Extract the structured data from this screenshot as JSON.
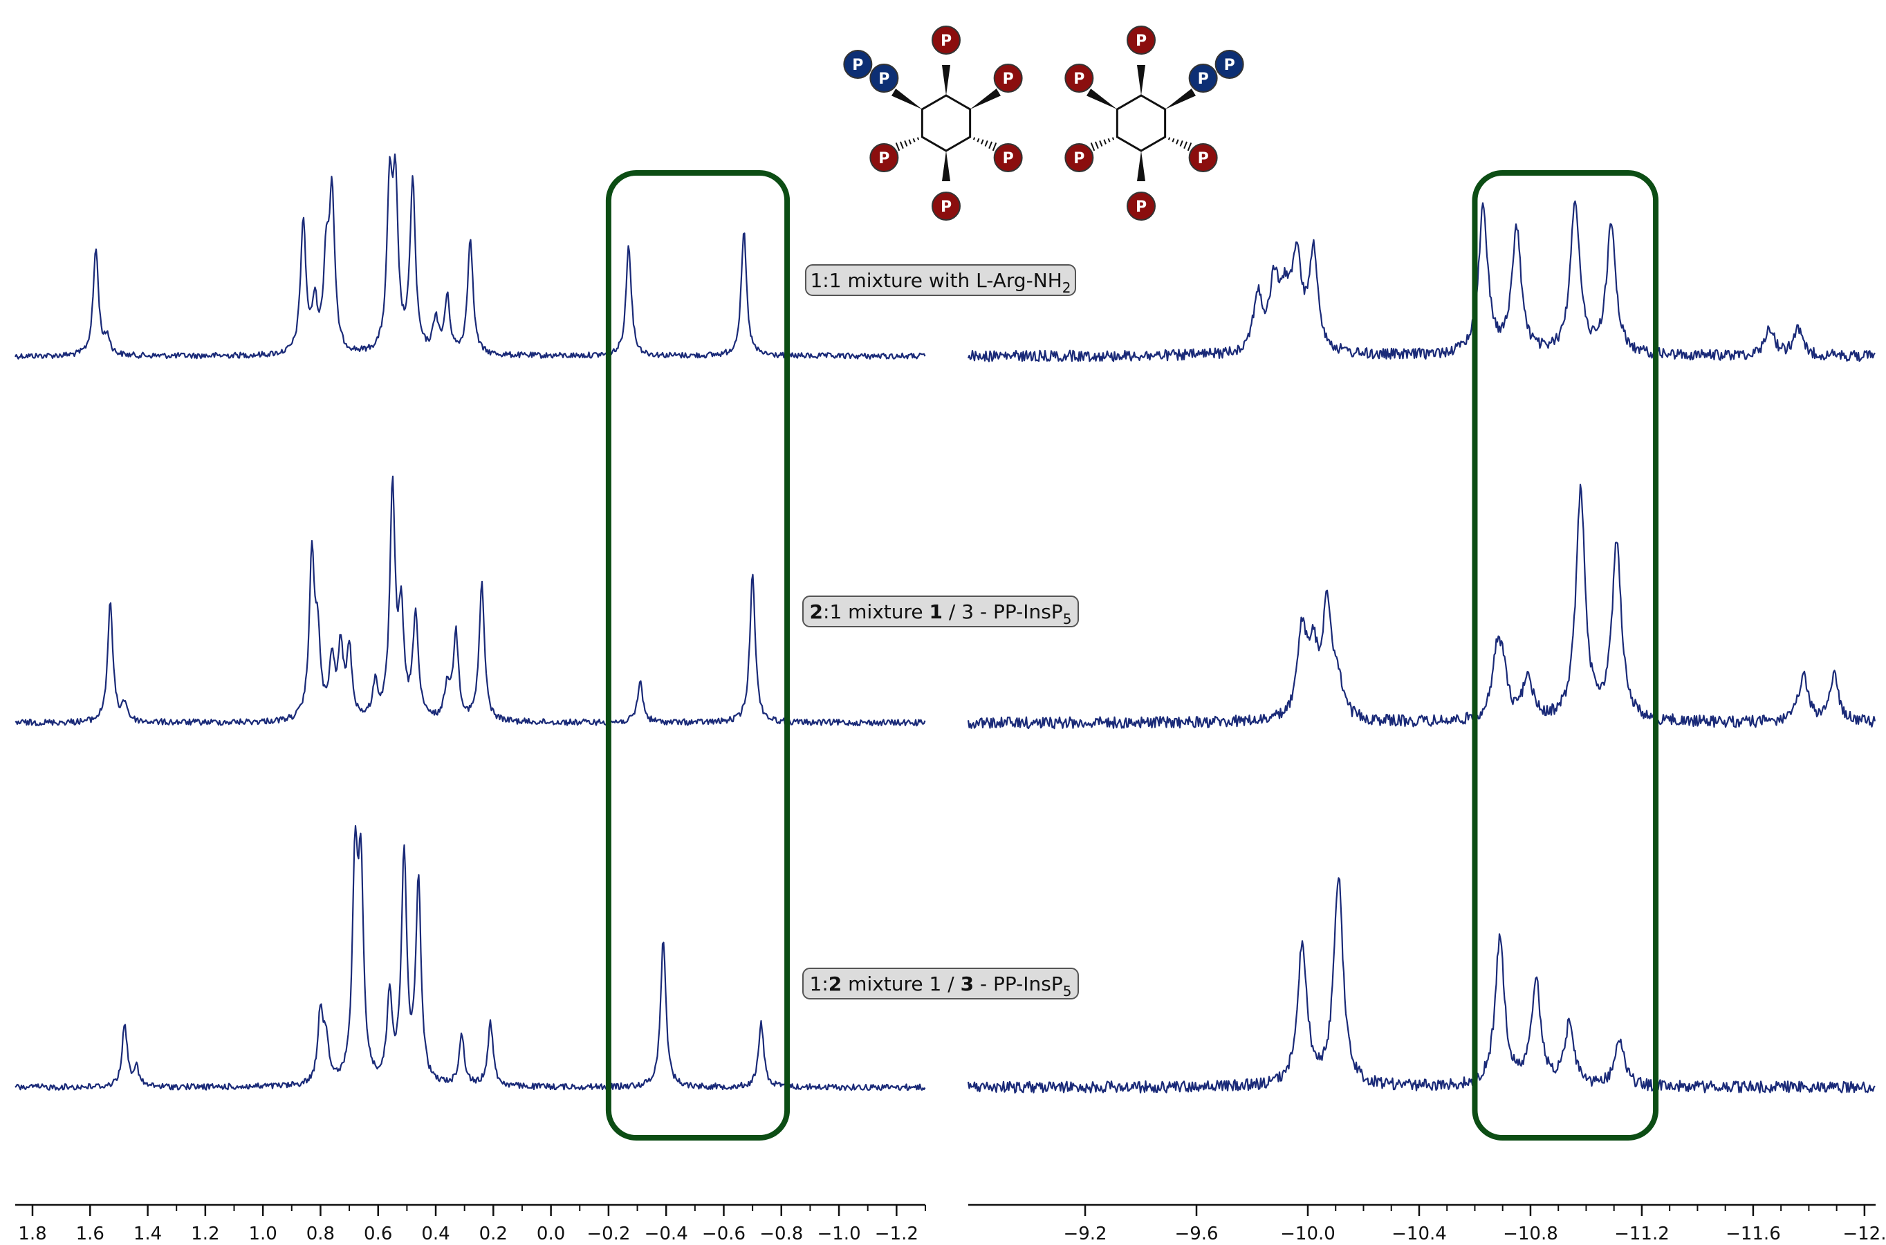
{
  "chart_data": [
    {
      "type": "line",
      "title": "",
      "xlabel": "",
      "ylabel": "",
      "xlim": [
        1.86,
        -1.3
      ],
      "x_ticks": [
        "1.8",
        "1.6",
        "1.4",
        "1.2",
        "1.0",
        "0.8",
        "0.6",
        "0.4",
        "0.2",
        "0.0",
        "−0.2",
        "−0.4",
        "−0.6",
        "−0.8",
        "−1.0",
        "−1.2"
      ],
      "highlight_region": [
        -0.2,
        -0.82
      ],
      "grid": false,
      "series": [
        {
          "peaks": [
            {
              "x": 1.58,
              "h": 0.5
            },
            {
              "x": 1.54,
              "h": 0.08
            },
            {
              "x": 0.86,
              "h": 0.62
            },
            {
              "x": 0.82,
              "h": 0.22
            },
            {
              "x": 0.78,
              "h": 0.42
            },
            {
              "x": 0.76,
              "h": 0.72
            },
            {
              "x": 0.56,
              "h": 0.74
            },
            {
              "x": 0.54,
              "h": 0.72
            },
            {
              "x": 0.48,
              "h": 0.8
            },
            {
              "x": 0.4,
              "h": 0.16
            },
            {
              "x": 0.36,
              "h": 0.26
            },
            {
              "x": 0.28,
              "h": 0.55
            },
            {
              "x": -0.27,
              "h": 0.52
            },
            {
              "x": -0.67,
              "h": 0.58
            }
          ]
        },
        {
          "peaks": [
            {
              "x": 1.53,
              "h": 0.52
            },
            {
              "x": 1.48,
              "h": 0.08
            },
            {
              "x": 0.83,
              "h": 0.7
            },
            {
              "x": 0.81,
              "h": 0.32
            },
            {
              "x": 0.76,
              "h": 0.25
            },
            {
              "x": 0.73,
              "h": 0.3
            },
            {
              "x": 0.7,
              "h": 0.3
            },
            {
              "x": 0.61,
              "h": 0.15
            },
            {
              "x": 0.55,
              "h": 1.0
            },
            {
              "x": 0.52,
              "h": 0.44
            },
            {
              "x": 0.47,
              "h": 0.46
            },
            {
              "x": 0.36,
              "h": 0.15
            },
            {
              "x": 0.33,
              "h": 0.38
            },
            {
              "x": 0.24,
              "h": 0.6
            },
            {
              "x": -0.31,
              "h": 0.18
            },
            {
              "x": -0.7,
              "h": 0.66
            }
          ]
        },
        {
          "peaks": [
            {
              "x": 1.48,
              "h": 0.27
            },
            {
              "x": 1.44,
              "h": 0.08
            },
            {
              "x": 0.8,
              "h": 0.32
            },
            {
              "x": 0.78,
              "h": 0.18
            },
            {
              "x": 0.68,
              "h": 0.92
            },
            {
              "x": 0.66,
              "h": 0.88
            },
            {
              "x": 0.56,
              "h": 0.38
            },
            {
              "x": 0.51,
              "h": 1.0
            },
            {
              "x": 0.46,
              "h": 0.88
            },
            {
              "x": 0.31,
              "h": 0.22
            },
            {
              "x": 0.21,
              "h": 0.28
            },
            {
              "x": -0.39,
              "h": 0.65
            },
            {
              "x": -0.73,
              "h": 0.28
            }
          ]
        }
      ]
    },
    {
      "type": "line",
      "title": "",
      "xlabel": "",
      "ylabel": "",
      "xlim": [
        -8.78,
        -12.04
      ],
      "x_ticks": [
        "−9.2",
        "−9.6",
        "−10.0",
        "−10.4",
        "−10.8",
        "−11.2",
        "−11.6",
        "−12."
      ],
      "highlight_region": [
        -10.6,
        -11.25
      ],
      "grid": false,
      "series": [
        {
          "peaks": [
            {
              "x": -9.82,
              "h": 0.26
            },
            {
              "x": -9.88,
              "h": 0.32
            },
            {
              "x": -9.92,
              "h": 0.22
            },
            {
              "x": -9.96,
              "h": 0.42
            },
            {
              "x": -10.02,
              "h": 0.46
            },
            {
              "x": -10.63,
              "h": 0.68
            },
            {
              "x": -10.75,
              "h": 0.58
            },
            {
              "x": -10.96,
              "h": 0.72
            },
            {
              "x": -11.09,
              "h": 0.6
            },
            {
              "x": -11.66,
              "h": 0.13
            },
            {
              "x": -11.76,
              "h": 0.12
            }
          ]
        },
        {
          "peaks": [
            {
              "x": -9.98,
              "h": 0.38
            },
            {
              "x": -10.02,
              "h": 0.26
            },
            {
              "x": -10.07,
              "h": 0.5
            },
            {
              "x": -10.11,
              "h": 0.12
            },
            {
              "x": -10.68,
              "h": 0.26
            },
            {
              "x": -10.7,
              "h": 0.18
            },
            {
              "x": -10.79,
              "h": 0.2
            },
            {
              "x": -10.98,
              "h": 1.0
            },
            {
              "x": -11.11,
              "h": 0.78
            },
            {
              "x": -11.78,
              "h": 0.2
            },
            {
              "x": -11.89,
              "h": 0.2
            }
          ]
        },
        {
          "peaks": [
            {
              "x": -9.98,
              "h": 0.62
            },
            {
              "x": -10.11,
              "h": 0.91
            },
            {
              "x": -10.69,
              "h": 0.65
            },
            {
              "x": -10.82,
              "h": 0.46
            },
            {
              "x": -10.94,
              "h": 0.27
            },
            {
              "x": -11.12,
              "h": 0.21
            }
          ]
        }
      ]
    }
  ],
  "trace_labels": [
    {
      "parts": [
        {
          "text": "1:1 mixture with L-Arg-NH"
        },
        {
          "text": "2",
          "sub": true
        }
      ]
    },
    {
      "parts": [
        {
          "text": "2",
          "bold": true
        },
        {
          "text": ":1 mixture "
        },
        {
          "text": "1",
          "bold": true
        },
        {
          "text": " / 3 - PP-InsP"
        },
        {
          "text": "5",
          "sub": true
        }
      ]
    },
    {
      "parts": [
        {
          "text": "1:"
        },
        {
          "text": "2",
          "bold": true
        },
        {
          "text": " mixture 1 / "
        },
        {
          "text": "3",
          "bold": true
        },
        {
          "text": " - PP-InsP"
        },
        {
          "text": "5",
          "sub": true
        }
      ]
    }
  ],
  "structures": {
    "phosphate_label": "P",
    "phosphate_colors": {
      "red": "#8b0e0e",
      "blue": "#0d2f74"
    },
    "molecules": [
      {
        "name": "1-PP-InsP5",
        "pyro_position": "left"
      },
      {
        "name": "3-PP-InsP5",
        "pyro_position": "right"
      }
    ]
  },
  "colors": {
    "trace": "#1a2a78",
    "highlight_box": "#0c4d14",
    "axis": "#111111",
    "label_box_fill": "#dcdcdc",
    "label_box_border": "#555555",
    "bond": "#111111"
  }
}
